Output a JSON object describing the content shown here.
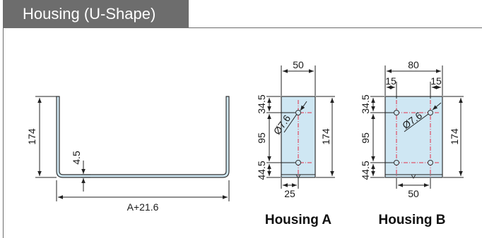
{
  "header": {
    "title": "Housing (U-Shape)"
  },
  "u_shape": {
    "height": "174",
    "thickness": "4.5",
    "length": "A+21.6"
  },
  "housing_a": {
    "caption": "Housing A",
    "width": "50",
    "top": "34.5",
    "middle": "95",
    "bottom": "44.5",
    "height": "174",
    "hole": "Ø7.6",
    "hole_offset": "25"
  },
  "housing_b": {
    "caption": "Housing B",
    "width": "80",
    "left_offset": "15",
    "right_offset": "15",
    "top": "34.5",
    "middle": "95",
    "bottom": "44.5",
    "height": "174",
    "hole": "Ø7.6",
    "hole_spacing": "50"
  },
  "colors": {
    "header": "#6d6d6d",
    "fill": "#cfe7f3",
    "centerline": "#e0304a"
  }
}
